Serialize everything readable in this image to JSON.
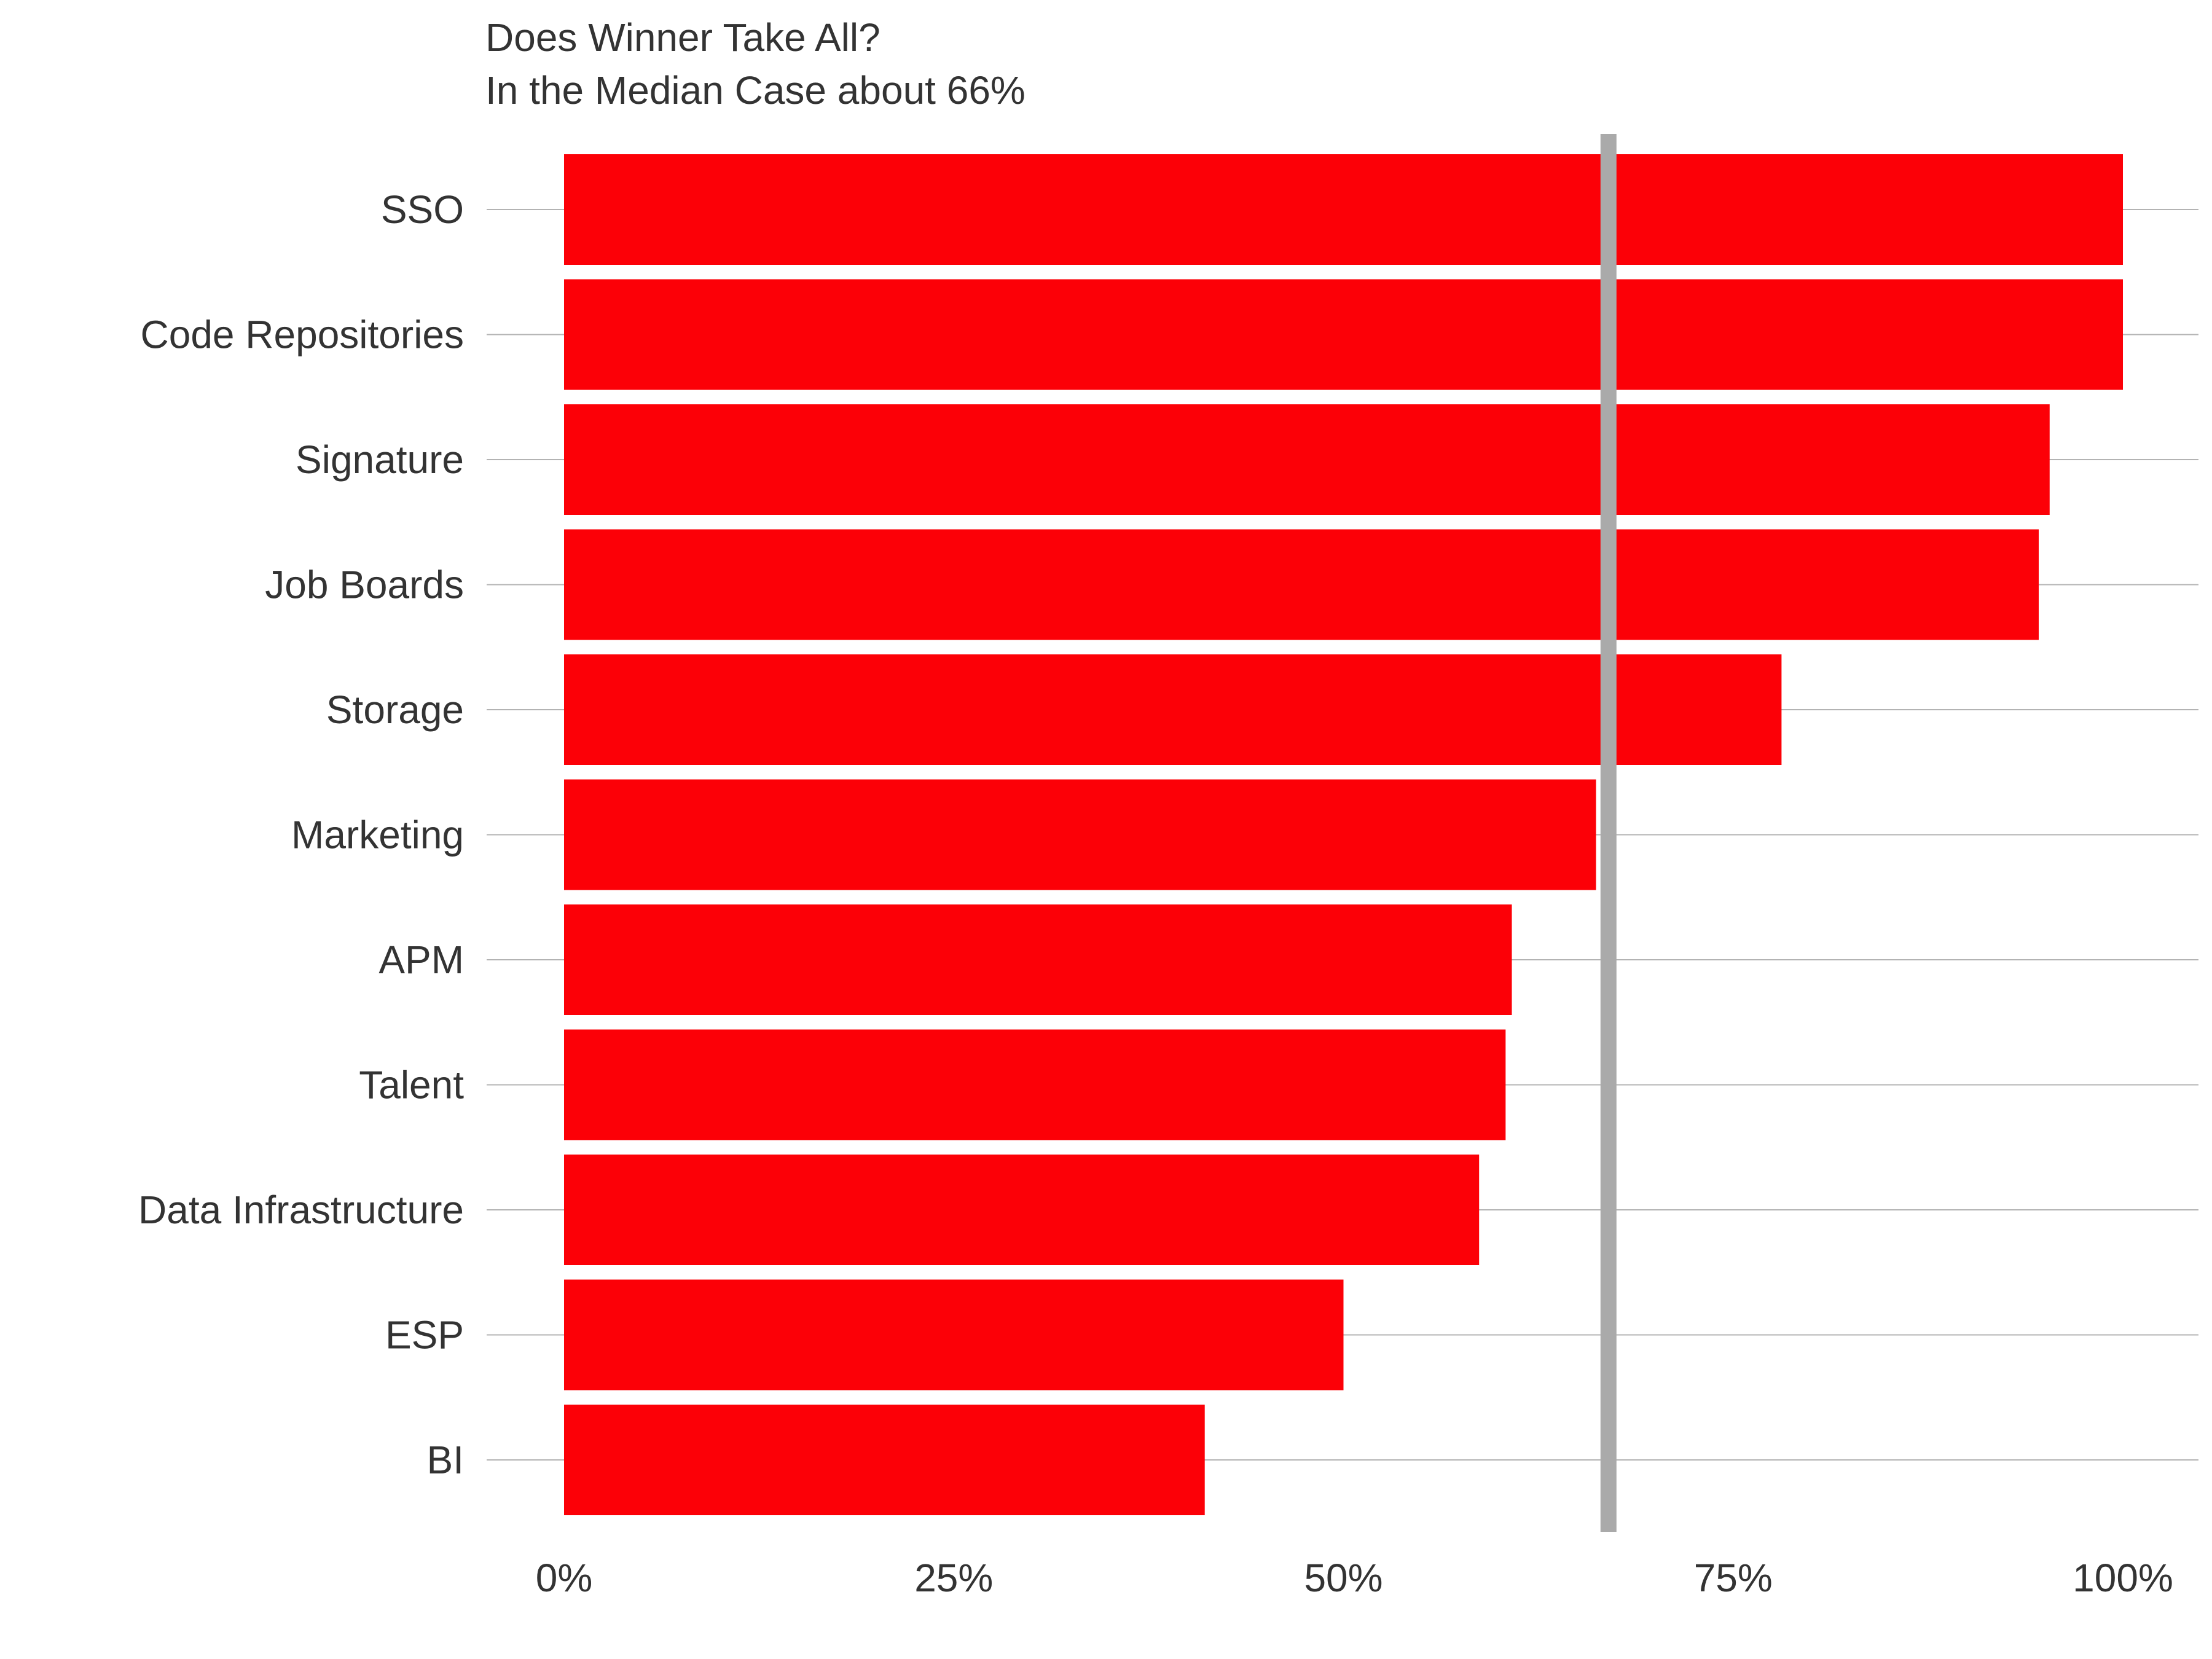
{
  "chart_data": {
    "type": "bar",
    "orientation": "horizontal",
    "title": "Does Winner Take All?",
    "subtitle": "In the Median Case about 66%",
    "categories": [
      "SSO",
      "Code Repositories",
      "Signature",
      "Job Boards",
      "Storage",
      "Marketing",
      "APM",
      "Talent",
      "Data Infrastructure",
      "ESP",
      "BI"
    ],
    "values": [
      100,
      100,
      95.3,
      94.6,
      78.1,
      66.2,
      60.8,
      60.4,
      58.7,
      50.0,
      41.1
    ],
    "xlabel": "",
    "ylabel": "",
    "xlim": [
      0,
      100
    ],
    "xticks": [
      0,
      25,
      50,
      75,
      100
    ],
    "xtick_labels": [
      "0%",
      "25%",
      "50%",
      "75%",
      "100%"
    ],
    "reference_line": {
      "value": 67,
      "color": "#aaaaaa"
    },
    "grid": "horizontal",
    "bar_color": "#fc0007",
    "grid_color": "#b3b3b3",
    "text_color": "#333333",
    "background": "#ffffff"
  }
}
